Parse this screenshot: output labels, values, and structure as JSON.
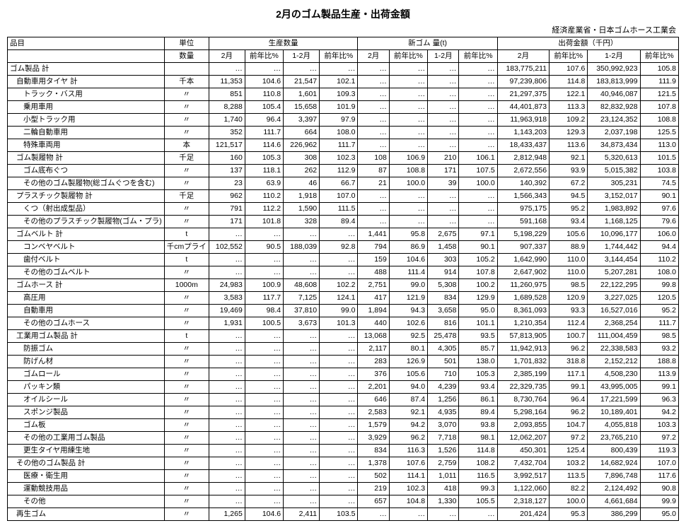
{
  "title": "2月のゴム製品生産・出荷金額",
  "subtitle": "経済産業省・日本ゴムホース工業会",
  "headers": {
    "item": "品目",
    "unit": "単位",
    "qty_label": "数量",
    "prod": "生産数量",
    "newgum": "新ゴム 量(t)",
    "ship": "出荷金額（千円）",
    "feb": "2月",
    "yoy": "前年比%",
    "jan_feb": "1-2月"
  },
  "rows": [
    {
      "name": "ゴム製品 計",
      "indent": 0,
      "unit": "",
      "p1": "…",
      "p2": "…",
      "p3": "…",
      "p4": "…",
      "n1": "…",
      "n2": "…",
      "n3": "…",
      "n4": "…",
      "s1": "183,775,211",
      "s2": "107.6",
      "s3": "350,992,923",
      "s4": "105.8"
    },
    {
      "name": "自動車用タイヤ 計",
      "indent": 1,
      "unit": "千本",
      "p1": "11,353",
      "p2": "104.6",
      "p3": "21,547",
      "p4": "102.1",
      "n1": "…",
      "n2": "…",
      "n3": "…",
      "n4": "…",
      "s1": "97,239,806",
      "s2": "114.8",
      "s3": "183,813,999",
      "s4": "111.9"
    },
    {
      "name": "トラック・バス用",
      "indent": 2,
      "unit": "〃",
      "p1": "851",
      "p2": "110.8",
      "p3": "1,601",
      "p4": "109.3",
      "n1": "…",
      "n2": "…",
      "n3": "…",
      "n4": "…",
      "s1": "21,297,375",
      "s2": "122.1",
      "s3": "40,946,087",
      "s4": "121.5"
    },
    {
      "name": "乗用車用",
      "indent": 2,
      "unit": "〃",
      "p1": "8,288",
      "p2": "105.4",
      "p3": "15,658",
      "p4": "101.9",
      "n1": "…",
      "n2": "…",
      "n3": "…",
      "n4": "…",
      "s1": "44,401,873",
      "s2": "113.3",
      "s3": "82,832,928",
      "s4": "107.8"
    },
    {
      "name": "小型トラック用",
      "indent": 2,
      "unit": "〃",
      "p1": "1,740",
      "p2": "96.4",
      "p3": "3,397",
      "p4": "97.9",
      "n1": "…",
      "n2": "…",
      "n3": "…",
      "n4": "…",
      "s1": "11,963,918",
      "s2": "109.2",
      "s3": "23,124,352",
      "s4": "108.8"
    },
    {
      "name": "二輪自動車用",
      "indent": 2,
      "unit": "〃",
      "p1": "352",
      "p2": "111.7",
      "p3": "664",
      "p4": "108.0",
      "n1": "…",
      "n2": "…",
      "n3": "…",
      "n4": "…",
      "s1": "1,143,203",
      "s2": "129.3",
      "s3": "2,037,198",
      "s4": "125.5"
    },
    {
      "name": "特殊車両用",
      "indent": 2,
      "unit": "本",
      "p1": "121,517",
      "p2": "114.6",
      "p3": "226,962",
      "p4": "111.7",
      "n1": "…",
      "n2": "…",
      "n3": "…",
      "n4": "…",
      "s1": "18,433,437",
      "s2": "113.6",
      "s3": "34,873,434",
      "s4": "113.0"
    },
    {
      "name": "ゴム製履物 計",
      "indent": 1,
      "unit": "千足",
      "p1": "160",
      "p2": "105.3",
      "p3": "308",
      "p4": "102.3",
      "n1": "108",
      "n2": "106.9",
      "n3": "210",
      "n4": "106.1",
      "s1": "2,812,948",
      "s2": "92.1",
      "s3": "5,320,613",
      "s4": "101.5"
    },
    {
      "name": "ゴム底布ぐつ",
      "indent": 2,
      "unit": "〃",
      "p1": "137",
      "p2": "118.1",
      "p3": "262",
      "p4": "112.9",
      "n1": "87",
      "n2": "108.8",
      "n3": "171",
      "n4": "107.5",
      "s1": "2,672,556",
      "s2": "93.9",
      "s3": "5,015,382",
      "s4": "103.8"
    },
    {
      "name": "その他のゴム製履物(総ゴムぐつを含む)",
      "indent": 2,
      "unit": "〃",
      "p1": "23",
      "p2": "63.9",
      "p3": "46",
      "p4": "66.7",
      "n1": "21",
      "n2": "100.0",
      "n3": "39",
      "n4": "100.0",
      "s1": "140,392",
      "s2": "67.2",
      "s3": "305,231",
      "s4": "74.5"
    },
    {
      "name": "プラスチック製履物 計",
      "indent": 1,
      "unit": "千足",
      "p1": "962",
      "p2": "110.2",
      "p3": "1,918",
      "p4": "107.0",
      "n1": "…",
      "n2": "…",
      "n3": "…",
      "n4": "…",
      "s1": "1,566,343",
      "s2": "94.5",
      "s3": "3,152,017",
      "s4": "90.1"
    },
    {
      "name": "くつ（射出成型品）",
      "indent": 2,
      "unit": "〃",
      "p1": "791",
      "p2": "112.2",
      "p3": "1,590",
      "p4": "111.5",
      "n1": "…",
      "n2": "…",
      "n3": "…",
      "n4": "…",
      "s1": "975,175",
      "s2": "95.2",
      "s3": "1,983,892",
      "s4": "97.6"
    },
    {
      "name": "その他のプラスチック製履物(ゴム・プラ)",
      "indent": 2,
      "unit": "〃",
      "p1": "171",
      "p2": "101.8",
      "p3": "328",
      "p4": "89.4",
      "n1": "…",
      "n2": "…",
      "n3": "…",
      "n4": "…",
      "s1": "591,168",
      "s2": "93.4",
      "s3": "1,168,125",
      "s4": "79.6"
    },
    {
      "name": "ゴムベルト 計",
      "indent": 1,
      "unit": "t",
      "p1": "…",
      "p2": "…",
      "p3": "…",
      "p4": "…",
      "n1": "1,441",
      "n2": "95.8",
      "n3": "2,675",
      "n4": "97.1",
      "s1": "5,198,229",
      "s2": "105.6",
      "s3": "10,096,177",
      "s4": "106.0"
    },
    {
      "name": "コンベヤベルト",
      "indent": 2,
      "unit": "千cmプライ",
      "p1": "102,552",
      "p2": "90.5",
      "p3": "188,039",
      "p4": "92.8",
      "n1": "794",
      "n2": "86.9",
      "n3": "1,458",
      "n4": "90.1",
      "s1": "907,337",
      "s2": "88.9",
      "s3": "1,744,442",
      "s4": "94.4"
    },
    {
      "name": "歯付ベルト",
      "indent": 2,
      "unit": "t",
      "p1": "…",
      "p2": "…",
      "p3": "…",
      "p4": "…",
      "n1": "159",
      "n2": "104.6",
      "n3": "303",
      "n4": "105.2",
      "s1": "1,642,990",
      "s2": "110.0",
      "s3": "3,144,454",
      "s4": "110.2"
    },
    {
      "name": "その他のゴムベルト",
      "indent": 2,
      "unit": "〃",
      "p1": "…",
      "p2": "…",
      "p3": "…",
      "p4": "…",
      "n1": "488",
      "n2": "111.4",
      "n3": "914",
      "n4": "107.8",
      "s1": "2,647,902",
      "s2": "110.0",
      "s3": "5,207,281",
      "s4": "108.0"
    },
    {
      "name": "ゴムホース 計",
      "indent": 1,
      "unit": "1000m",
      "p1": "24,983",
      "p2": "100.9",
      "p3": "48,608",
      "p4": "102.2",
      "n1": "2,751",
      "n2": "99.0",
      "n3": "5,308",
      "n4": "100.2",
      "s1": "11,260,975",
      "s2": "98.5",
      "s3": "22,122,295",
      "s4": "99.8"
    },
    {
      "name": "高圧用",
      "indent": 2,
      "unit": "〃",
      "p1": "3,583",
      "p2": "117.7",
      "p3": "7,125",
      "p4": "124.1",
      "n1": "417",
      "n2": "121.9",
      "n3": "834",
      "n4": "129.9",
      "s1": "1,689,528",
      "s2": "120.9",
      "s3": "3,227,025",
      "s4": "120.5"
    },
    {
      "name": "自動車用",
      "indent": 2,
      "unit": "〃",
      "p1": "19,469",
      "p2": "98.4",
      "p3": "37,810",
      "p4": "99.0",
      "n1": "1,894",
      "n2": "94.3",
      "n3": "3,658",
      "n4": "95.0",
      "s1": "8,361,093",
      "s2": "93.3",
      "s3": "16,527,016",
      "s4": "95.2"
    },
    {
      "name": "その他のゴムホース",
      "indent": 2,
      "unit": "〃",
      "p1": "1,931",
      "p2": "100.5",
      "p3": "3,673",
      "p4": "101.3",
      "n1": "440",
      "n2": "102.6",
      "n3": "816",
      "n4": "101.1",
      "s1": "1,210,354",
      "s2": "112.4",
      "s3": "2,368,254",
      "s4": "111.7"
    },
    {
      "name": "工業用ゴム製品 計",
      "indent": 1,
      "unit": "t",
      "p1": "…",
      "p2": "…",
      "p3": "…",
      "p4": "…",
      "n1": "13,068",
      "n2": "92.5",
      "n3": "25,478",
      "n4": "93.5",
      "s1": "57,813,905",
      "s2": "100.7",
      "s3": "111,004,459",
      "s4": "98.5"
    },
    {
      "name": "防振ゴム",
      "indent": 2,
      "unit": "〃",
      "p1": "…",
      "p2": "…",
      "p3": "…",
      "p4": "…",
      "n1": "2,117",
      "n2": "80.1",
      "n3": "4,305",
      "n4": "85.7",
      "s1": "11,942,913",
      "s2": "96.2",
      "s3": "22,338,583",
      "s4": "93.2"
    },
    {
      "name": "防げん材",
      "indent": 2,
      "unit": "〃",
      "p1": "…",
      "p2": "…",
      "p3": "…",
      "p4": "…",
      "n1": "283",
      "n2": "126.9",
      "n3": "501",
      "n4": "138.0",
      "s1": "1,701,832",
      "s2": "318.8",
      "s3": "2,152,212",
      "s4": "188.8"
    },
    {
      "name": "ゴムロール",
      "indent": 2,
      "unit": "〃",
      "p1": "…",
      "p2": "…",
      "p3": "…",
      "p4": "…",
      "n1": "376",
      "n2": "105.6",
      "n3": "710",
      "n4": "105.3",
      "s1": "2,385,199",
      "s2": "117.1",
      "s3": "4,508,230",
      "s4": "113.9"
    },
    {
      "name": "パッキン類",
      "indent": 2,
      "unit": "〃",
      "p1": "…",
      "p2": "…",
      "p3": "…",
      "p4": "…",
      "n1": "2,201",
      "n2": "94.0",
      "n3": "4,239",
      "n4": "93.4",
      "s1": "22,329,735",
      "s2": "99.1",
      "s3": "43,995,005",
      "s4": "99.1"
    },
    {
      "name": "オイルシール",
      "indent": 2,
      "unit": "〃",
      "p1": "…",
      "p2": "…",
      "p3": "…",
      "p4": "…",
      "n1": "646",
      "n2": "87.4",
      "n3": "1,256",
      "n4": "86.1",
      "s1": "8,730,764",
      "s2": "96.4",
      "s3": "17,221,599",
      "s4": "96.3"
    },
    {
      "name": "スポンジ製品",
      "indent": 2,
      "unit": "〃",
      "p1": "…",
      "p2": "…",
      "p3": "…",
      "p4": "…",
      "n1": "2,583",
      "n2": "92.1",
      "n3": "4,935",
      "n4": "89.4",
      "s1": "5,298,164",
      "s2": "96.2",
      "s3": "10,189,401",
      "s4": "94.2"
    },
    {
      "name": "ゴム板",
      "indent": 2,
      "unit": "〃",
      "p1": "…",
      "p2": "…",
      "p3": "…",
      "p4": "…",
      "n1": "1,579",
      "n2": "94.2",
      "n3": "3,070",
      "n4": "93.8",
      "s1": "2,093,855",
      "s2": "104.7",
      "s3": "4,055,818",
      "s4": "103.3"
    },
    {
      "name": "その他の工業用ゴム製品",
      "indent": 2,
      "unit": "〃",
      "p1": "…",
      "p2": "…",
      "p3": "…",
      "p4": "…",
      "n1": "3,929",
      "n2": "96.2",
      "n3": "7,718",
      "n4": "98.1",
      "s1": "12,062,207",
      "s2": "97.2",
      "s3": "23,765,210",
      "s4": "97.2"
    },
    {
      "name": "更生タイヤ用練生地",
      "indent": 2,
      "unit": "〃",
      "p1": "…",
      "p2": "…",
      "p3": "…",
      "p4": "…",
      "n1": "834",
      "n2": "116.3",
      "n3": "1,526",
      "n4": "114.8",
      "s1": "450,301",
      "s2": "125.4",
      "s3": "800,439",
      "s4": "119.3"
    },
    {
      "name": "その他のゴム製品 計",
      "indent": 1,
      "unit": "〃",
      "p1": "…",
      "p2": "…",
      "p3": "…",
      "p4": "…",
      "n1": "1,378",
      "n2": "107.6",
      "n3": "2,759",
      "n4": "108.2",
      "s1": "7,432,704",
      "s2": "103.2",
      "s3": "14,682,924",
      "s4": "107.0"
    },
    {
      "name": "医療・衛生用",
      "indent": 2,
      "unit": "〃",
      "p1": "…",
      "p2": "…",
      "p3": "…",
      "p4": "…",
      "n1": "502",
      "n2": "114.1",
      "n3": "1,011",
      "n4": "116.5",
      "s1": "3,992,517",
      "s2": "113.5",
      "s3": "7,896,748",
      "s4": "117.6"
    },
    {
      "name": "運動競技用品",
      "indent": 2,
      "unit": "〃",
      "p1": "…",
      "p2": "…",
      "p3": "…",
      "p4": "…",
      "n1": "219",
      "n2": "102.3",
      "n3": "418",
      "n4": "99.3",
      "s1": "1,122,060",
      "s2": "82.2",
      "s3": "2,124,492",
      "s4": "90.8"
    },
    {
      "name": "その他",
      "indent": 2,
      "unit": "〃",
      "p1": "…",
      "p2": "…",
      "p3": "…",
      "p4": "…",
      "n1": "657",
      "n2": "104.8",
      "n3": "1,330",
      "n4": "105.5",
      "s1": "2,318,127",
      "s2": "100.0",
      "s3": "4,661,684",
      "s4": "99.9"
    },
    {
      "name": "再生ゴム",
      "indent": 1,
      "unit": "〃",
      "p1": "1,265",
      "p2": "104.6",
      "p3": "2,411",
      "p4": "103.5",
      "n1": "…",
      "n2": "…",
      "n3": "…",
      "n4": "…",
      "s1": "201,424",
      "s2": "95.3",
      "s3": "386,299",
      "s4": "95.0"
    }
  ]
}
